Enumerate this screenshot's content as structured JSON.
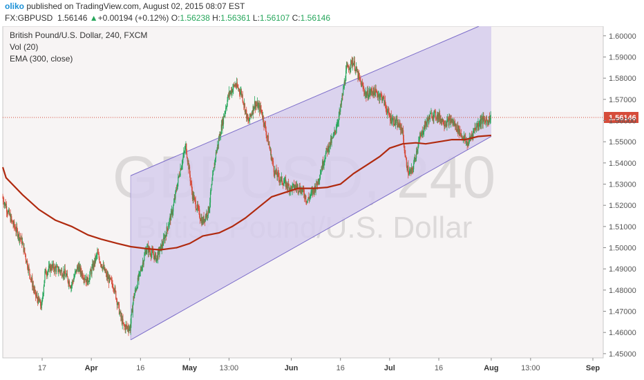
{
  "header": {
    "author": "oliko",
    "published_text": "published on TradingView.com, August 02, 2015 08:07 EST",
    "symbol": "FX:GBPUSD",
    "last": "1.56146",
    "change_arrow": "▲",
    "change": "+0.00194 (+0.12%)",
    "o_label": "O:",
    "o_value": "1.56238",
    "h_label": "H:",
    "h_value": "1.56361",
    "l_label": "L:",
    "l_value": "1.56107",
    "c_label": "C:",
    "c_value": "1.56146"
  },
  "legend": {
    "title": "British Pound/U.S. Dollar, 240, FXCM",
    "vol": "Vol (20)",
    "ema": "EMA (300, close)"
  },
  "watermark": {
    "symbol": "GBPUSD, 240",
    "name": "British Pound/U.S. Dollar"
  },
  "colors": {
    "up_candle": "#26a65b",
    "down_candle": "#d64c3a",
    "ema": "#b02a0f",
    "channel_fill": "#d6cdec",
    "channel_line": "#7b6cc9",
    "last_price_label": "#d64c3a",
    "pane_background": "#f7f4f4"
  },
  "chart_data": {
    "type": "candlestick",
    "title": "British Pound/U.S. Dollar, 240, FXCM",
    "x_ticks": [
      "17",
      "Apr",
      "16",
      "May",
      "13:00",
      "Jun",
      "16",
      "Jul",
      "16",
      "Aug",
      "13:00",
      "Sep"
    ],
    "x_tick_dates": [
      "2015-03-17",
      "2015-04-01",
      "2015-04-16",
      "2015-05-01",
      "2015-05-13",
      "2015-06-01",
      "2015-06-16",
      "2015-07-01",
      "2015-07-16",
      "2015-08-01",
      "2015-08-13",
      "2015-09-01"
    ],
    "y_ticks": [
      "1.60000",
      "1.59000",
      "1.58000",
      "1.57000",
      "1.56000",
      "1.55000",
      "1.54000",
      "1.53000",
      "1.52000",
      "1.51000",
      "1.50000",
      "1.49000",
      "1.48000",
      "1.47000",
      "1.46000",
      "1.45000"
    ],
    "ylim": [
      1.448,
      1.6045
    ],
    "last_price": 1.56146,
    "last_price_label": "1.56146",
    "price_path": [
      [
        "2015-03-05",
        1.524
      ],
      [
        "2015-03-08",
        1.512
      ],
      [
        "2015-03-11",
        1.503
      ],
      [
        "2015-03-13",
        1.49
      ],
      [
        "2015-03-15",
        1.478
      ],
      [
        "2015-03-17",
        1.472
      ],
      [
        "2015-03-18",
        1.488
      ],
      [
        "2015-03-20",
        1.491
      ],
      [
        "2015-03-24",
        1.488
      ],
      [
        "2015-03-26",
        1.482
      ],
      [
        "2015-03-28",
        1.491
      ],
      [
        "2015-03-31",
        1.484
      ],
      [
        "2015-04-03",
        1.497
      ],
      [
        "2015-04-06",
        1.486
      ],
      [
        "2015-04-08",
        1.482
      ],
      [
        "2015-04-10",
        1.468
      ],
      [
        "2015-04-11",
        1.463
      ],
      [
        "2015-04-13",
        1.462
      ],
      [
        "2015-04-14",
        1.476
      ],
      [
        "2015-04-16",
        1.488
      ],
      [
        "2015-04-18",
        1.5
      ],
      [
        "2015-04-21",
        1.495
      ],
      [
        "2015-04-23",
        1.502
      ],
      [
        "2015-04-26",
        1.518
      ],
      [
        "2015-04-28",
        1.535
      ],
      [
        "2015-04-30",
        1.548
      ],
      [
        "2015-05-02",
        1.525
      ],
      [
        "2015-05-05",
        1.512
      ],
      [
        "2015-05-07",
        1.518
      ],
      [
        "2015-05-09",
        1.543
      ],
      [
        "2015-05-11",
        1.558
      ],
      [
        "2015-05-13",
        1.572
      ],
      [
        "2015-05-15",
        1.577
      ],
      [
        "2015-05-17",
        1.573
      ],
      [
        "2015-05-19",
        1.559
      ],
      [
        "2015-05-21",
        1.568
      ],
      [
        "2015-05-23",
        1.565
      ],
      [
        "2015-05-25",
        1.551
      ],
      [
        "2015-05-27",
        1.536
      ],
      [
        "2015-05-29",
        1.532
      ],
      [
        "2015-06-01",
        1.528
      ],
      [
        "2015-06-03",
        1.529
      ],
      [
        "2015-06-05",
        1.526
      ],
      [
        "2015-06-06",
        1.522
      ],
      [
        "2015-06-09",
        1.53
      ],
      [
        "2015-06-11",
        1.541
      ],
      [
        "2015-06-12",
        1.546
      ],
      [
        "2015-06-14",
        1.552
      ],
      [
        "2015-06-16",
        1.564
      ],
      [
        "2015-06-18",
        1.584
      ],
      [
        "2015-06-20",
        1.588
      ],
      [
        "2015-06-22",
        1.579
      ],
      [
        "2015-06-24",
        1.572
      ],
      [
        "2015-06-26",
        1.574
      ],
      [
        "2015-06-29",
        1.571
      ],
      [
        "2015-07-01",
        1.562
      ],
      [
        "2015-07-03",
        1.559
      ],
      [
        "2015-07-05",
        1.556
      ],
      [
        "2015-07-06",
        1.542
      ],
      [
        "2015-07-07",
        1.535
      ],
      [
        "2015-07-08",
        1.536
      ],
      [
        "2015-07-10",
        1.55
      ],
      [
        "2015-07-12",
        1.558
      ],
      [
        "2015-07-14",
        1.563
      ],
      [
        "2015-07-16",
        1.562
      ],
      [
        "2015-07-18",
        1.559
      ],
      [
        "2015-07-20",
        1.56
      ],
      [
        "2015-07-22",
        1.556
      ],
      [
        "2015-07-24",
        1.551
      ],
      [
        "2015-07-25",
        1.549
      ],
      [
        "2015-07-27",
        1.556
      ],
      [
        "2015-07-29",
        1.56
      ],
      [
        "2015-07-31",
        1.56
      ],
      [
        "2015-08-01",
        1.56146
      ]
    ],
    "ema_300": [
      [
        "2015-03-01",
        1.538
      ],
      [
        "2015-03-06",
        1.533
      ],
      [
        "2015-03-11",
        1.525
      ],
      [
        "2015-03-16",
        1.518
      ],
      [
        "2015-03-21",
        1.513
      ],
      [
        "2015-03-26",
        1.51
      ],
      [
        "2015-03-31",
        1.506
      ],
      [
        "2015-04-04",
        1.504
      ],
      [
        "2015-04-09",
        1.502
      ],
      [
        "2015-04-13",
        1.5005
      ],
      [
        "2015-04-18",
        1.4995
      ],
      [
        "2015-04-22",
        1.499
      ],
      [
        "2015-04-27",
        1.5
      ],
      [
        "2015-05-01",
        1.502
      ],
      [
        "2015-05-05",
        1.5055
      ],
      [
        "2015-05-10",
        1.507
      ],
      [
        "2015-05-14",
        1.51
      ],
      [
        "2015-05-18",
        1.514
      ],
      [
        "2015-05-22",
        1.519
      ],
      [
        "2015-05-26",
        1.524
      ],
      [
        "2015-05-31",
        1.5265
      ],
      [
        "2015-06-03",
        1.528
      ],
      [
        "2015-06-08",
        1.528
      ],
      [
        "2015-06-12",
        1.5285
      ],
      [
        "2015-06-16",
        1.53
      ],
      [
        "2015-06-20",
        1.535
      ],
      [
        "2015-06-24",
        1.539
      ],
      [
        "2015-06-28",
        1.543
      ],
      [
        "2015-07-01",
        1.547
      ],
      [
        "2015-07-05",
        1.549
      ],
      [
        "2015-07-09",
        1.5495
      ],
      [
        "2015-07-12",
        1.549
      ],
      [
        "2015-07-16",
        1.55
      ],
      [
        "2015-07-20",
        1.551
      ],
      [
        "2015-07-24",
        1.551
      ],
      [
        "2015-07-28",
        1.5525
      ],
      [
        "2015-08-01",
        1.553
      ]
    ],
    "channel": {
      "upper": [
        [
          "2015-04-13",
          1.534
        ],
        [
          "2015-08-01",
          1.607
        ]
      ],
      "lower": [
        [
          "2015-04-13",
          1.4565
        ],
        [
          "2015-08-01",
          1.5525
        ]
      ],
      "right_extent": "2015-08-01"
    },
    "grid": false
  }
}
